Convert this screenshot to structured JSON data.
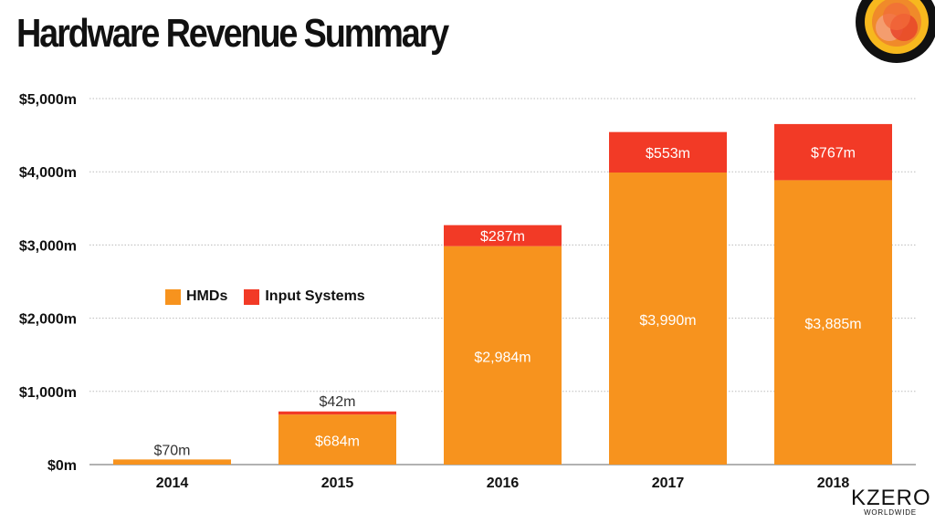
{
  "page": {
    "title": "Hardware Revenue Summary",
    "brand": {
      "name": "KZERO",
      "tagline": "WORLDWIDE"
    }
  },
  "colors": {
    "hmd": "#F7931E",
    "input": "#F23A26",
    "grid": "#BBBBBB",
    "logo_outer": "#111111",
    "logo_ring": "#F7B81E",
    "logo_core": "#E8452A"
  },
  "chart_data": {
    "type": "bar",
    "stacked": true,
    "title": "Hardware Revenue Summary",
    "categories": [
      "2014",
      "2015",
      "2016",
      "2017",
      "2018"
    ],
    "series": [
      {
        "name": "HMDs",
        "values": [
          70,
          684,
          2984,
          3990,
          3885
        ],
        "labels": [
          "$70m",
          "$684m",
          "$2,984m",
          "$3,990m",
          "$3,885m"
        ]
      },
      {
        "name": "Input Systems",
        "values": [
          0,
          42,
          287,
          553,
          767
        ],
        "labels": [
          "",
          "$42m",
          "$287m",
          "$553m",
          "$767m"
        ]
      }
    ],
    "ylim": [
      0,
      5000
    ],
    "yticks": [
      0,
      1000,
      2000,
      3000,
      4000,
      5000
    ],
    "ytick_labels": [
      "$0m",
      "$1,000m",
      "$2,000m",
      "$3,000m",
      "$4,000m",
      "$5,000m"
    ],
    "grid": true,
    "legend": "left-middle"
  }
}
